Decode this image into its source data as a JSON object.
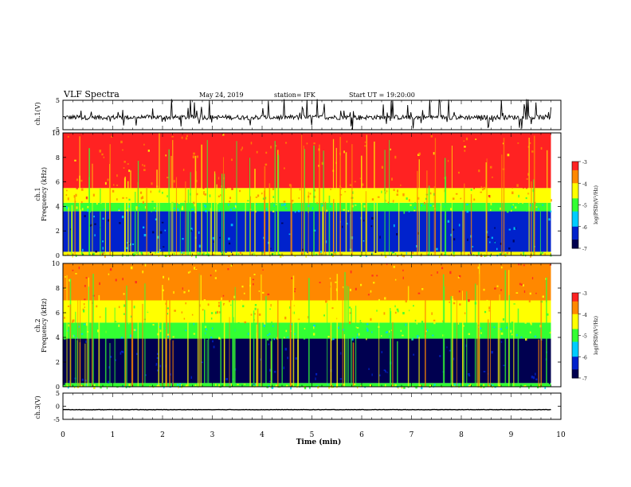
{
  "header": {
    "title": "VLF Spectra",
    "date": "May 24, 2019",
    "station": "station= IFK",
    "start": "Start UT = 19:20:00"
  },
  "chart_data": [
    {
      "type": "line",
      "panel": "ch.1 waveform",
      "ylabel": "ch.1(V)",
      "ylim": [
        -5,
        5
      ],
      "yticks": [
        "5",
        "-5"
      ],
      "baseline": -0.8,
      "spike_range": [
        -5,
        5
      ],
      "x": "Time (min)",
      "xlim": [
        0,
        9.8
      ]
    },
    {
      "type": "heatmap",
      "panel": "ch.1 spectrogram",
      "ylabel": "ch.1 Frequency (kHz)",
      "ylim": [
        0,
        10
      ],
      "yticks": [
        "0",
        "2",
        "4",
        "6",
        "8",
        "10"
      ],
      "xlim": [
        0,
        9.8
      ],
      "zlim": [
        -7,
        -3
      ],
      "cbar_ticks": [
        "-3",
        "-4",
        "-5",
        "-6",
        "-7"
      ],
      "cbar_label": "log(PSD)(V²/Hz)",
      "bands": [
        {
          "f": [
            0,
            0.3
          ],
          "level": -4.6
        },
        {
          "f": [
            0.3,
            3.6
          ],
          "level": -6.3
        },
        {
          "f": [
            3.6,
            4.3
          ],
          "level": -5.1
        },
        {
          "f": [
            4.3,
            5.5
          ],
          "level": -4.1
        },
        {
          "f": [
            5.5,
            10
          ],
          "level": -3.3
        }
      ]
    },
    {
      "type": "heatmap",
      "panel": "ch.2 spectrogram",
      "ylabel": "ch.2 Frequency (kHz)",
      "ylim": [
        0,
        10
      ],
      "yticks": [
        "0",
        "2",
        "4",
        "6",
        "8",
        "10"
      ],
      "xlim": [
        0,
        9.8
      ],
      "zlim": [
        -7,
        -3
      ],
      "cbar_ticks": [
        "-3",
        "-4",
        "-5",
        "-6",
        "-7"
      ],
      "cbar_label": "log(PSD)(V²/Hz)",
      "bands": [
        {
          "f": [
            0,
            0.3
          ],
          "level": -4.8
        },
        {
          "f": [
            0.3,
            3.9
          ],
          "level": -6.8
        },
        {
          "f": [
            3.9,
            5.2
          ],
          "level": -5.0
        },
        {
          "f": [
            5.2,
            7.0
          ],
          "level": -4.2
        },
        {
          "f": [
            7.0,
            10
          ],
          "level": -3.7
        }
      ]
    },
    {
      "type": "line",
      "panel": "ch.3 waveform",
      "ylabel": "ch.3(V)",
      "ylim": [
        -5,
        5
      ],
      "yticks": [
        "5",
        "0",
        "-5"
      ],
      "baseline": -1.3,
      "x": "Time (min)",
      "xlim": [
        0,
        9.8
      ]
    }
  ],
  "xaxis": {
    "label": "Time (min)",
    "ticks": [
      "0",
      "1",
      "2",
      "3",
      "4",
      "5",
      "6",
      "7",
      "8",
      "9",
      "10"
    ]
  },
  "colors": {
    "map": [
      "#000050",
      "#0022cc",
      "#00ccff",
      "#33ff33",
      "#ffff00",
      "#ff8800",
      "#ff2222"
    ],
    "line": "#000000",
    "background": "#ffffff"
  }
}
